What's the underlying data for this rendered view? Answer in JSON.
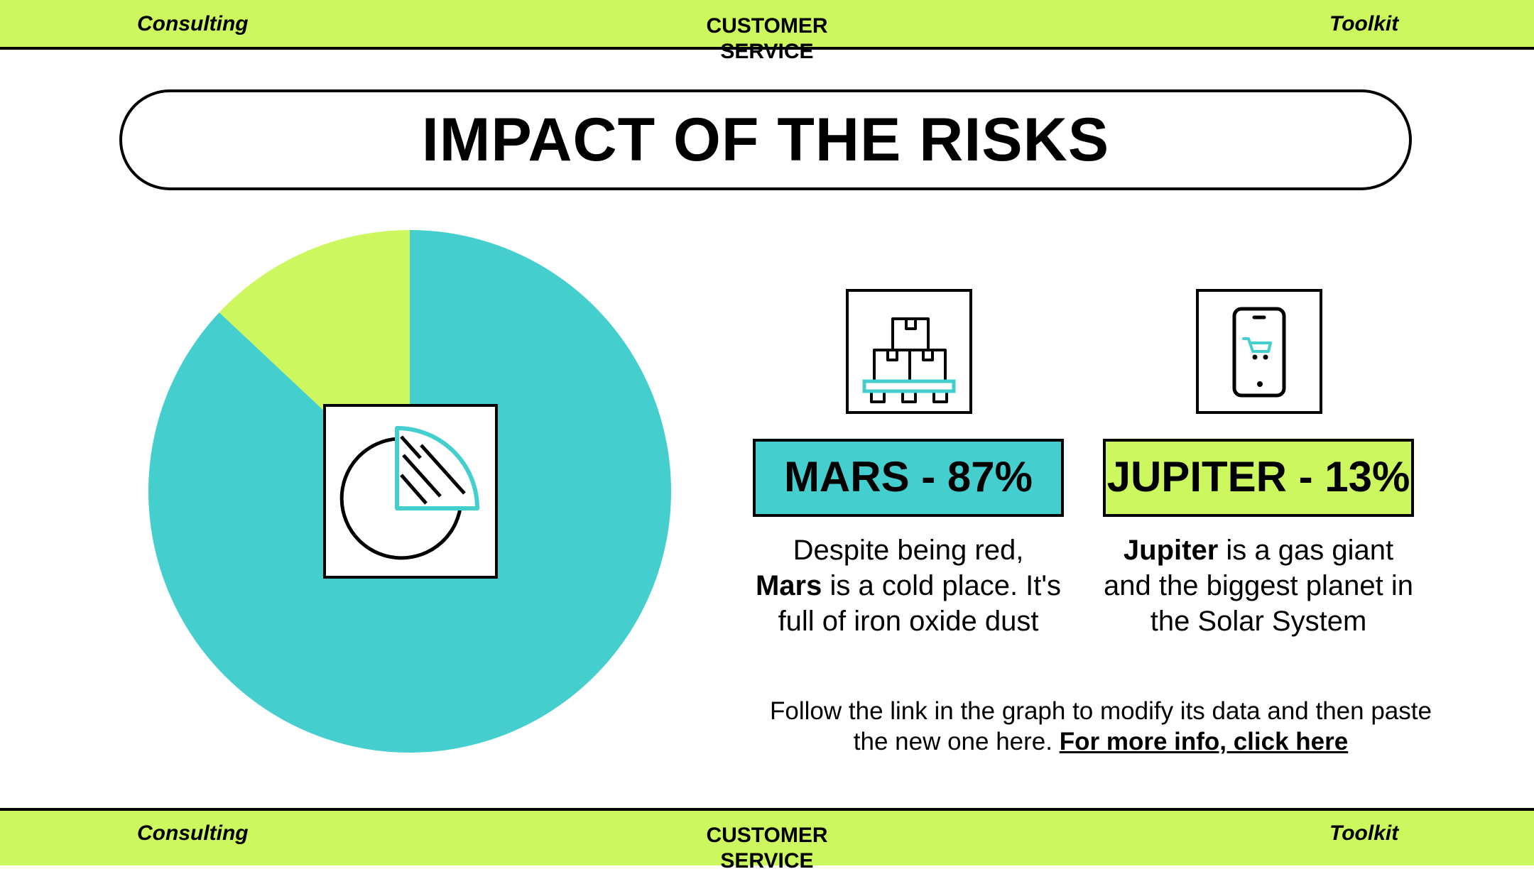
{
  "header": {
    "left": "Consulting",
    "center": "CUSTOMER SERVICE",
    "right": "Toolkit"
  },
  "footer": {
    "left": "Consulting",
    "center": "CUSTOMER SERVICE",
    "right": "Toolkit"
  },
  "title": "IMPACT OF THE RISKS",
  "colors": {
    "accent_cyan": "#45cece",
    "accent_lime": "#ccf75e"
  },
  "planets": [
    {
      "label": "MARS - 87%",
      "desc_name": "Mars",
      "desc_before": "Despite being red,",
      "desc_after": "is a cold place. It's full of iron oxide dust",
      "icon": "pallet-boxes-icon",
      "color": "#45cece"
    },
    {
      "label": "JUPITER - 13%",
      "desc_name": "Jupiter",
      "desc_before": "",
      "desc_after": "is a gas giant and the biggest planet in the Solar System",
      "icon": "mobile-cart-icon",
      "color": "#ccf75e"
    }
  ],
  "note": {
    "text": "Follow the link in the graph to modify its data and then paste the new one here.",
    "link": "For more info, click here"
  },
  "chart_data": {
    "type": "pie",
    "title": "",
    "start": "top, clockwise",
    "series": [
      {
        "name": "Mars",
        "value": 87,
        "color": "#45cece"
      },
      {
        "name": "Jupiter",
        "value": 13,
        "color": "#ccf75e"
      }
    ],
    "center_icon": "pie-chart-icon"
  }
}
